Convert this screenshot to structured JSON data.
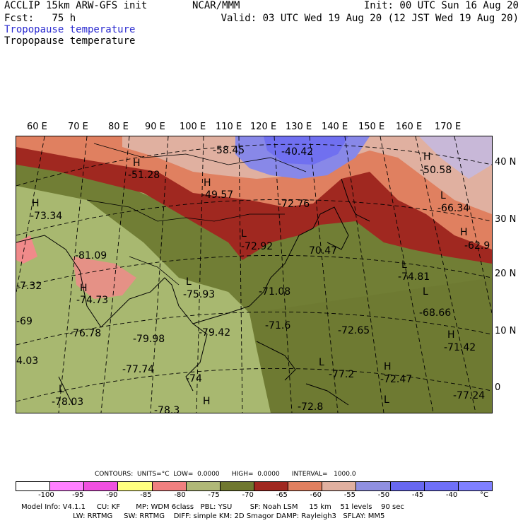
{
  "header": {
    "model": "ACCLIP 15km ARW-GFS init",
    "center": "NCAR/MMM",
    "init": "Init: 00 UTC Sun 16 Aug 20",
    "fcst_label": "Fcst:",
    "fcst_value": "75 h",
    "valid": "Valid: 03 UTC Wed 19 Aug 20 (12 JST Wed 19 Aug 20)",
    "title1": "Tropopause temperature",
    "title2": "Tropopause temperature"
  },
  "longitudes": [
    "60 E",
    "70 E",
    "80 E",
    "90 E",
    "100 E",
    "110 E",
    "120 E",
    "130 E",
    "140 E",
    "150 E",
    "160 E",
    "170 E"
  ],
  "latitudes": [
    "40 N",
    "30 N",
    "20 N",
    "10 N",
    "0"
  ],
  "map_labels": [
    {
      "text": "-58.45"
    },
    {
      "text": "-40.42"
    },
    {
      "text": "H"
    },
    {
      "text": "-51.28"
    },
    {
      "text": "H"
    },
    {
      "text": "-49.57"
    },
    {
      "text": "H"
    },
    {
      "text": "-50.58"
    },
    {
      "text": "L"
    },
    {
      "text": "-66.34"
    },
    {
      "text": "H"
    },
    {
      "text": "-73.34"
    },
    {
      "text": "-72.76"
    },
    {
      "text": "H"
    },
    {
      "text": "-62.9"
    },
    {
      "text": "L"
    },
    {
      "text": "-72.92"
    },
    {
      "text": "70.47"
    },
    {
      "text": "-81.09"
    },
    {
      "text": "L"
    },
    {
      "text": "-74.81"
    },
    {
      "text": "-7.32"
    },
    {
      "text": "H"
    },
    {
      "text": "-74.73"
    },
    {
      "text": "L"
    },
    {
      "text": "-75.93"
    },
    {
      "text": "-71.08"
    },
    {
      "text": "L"
    },
    {
      "text": "-68.66"
    },
    {
      "text": "-69"
    },
    {
      "text": "-76.78"
    },
    {
      "text": "-79.98"
    },
    {
      "text": "-79.42"
    },
    {
      "text": "-71.6"
    },
    {
      "text": "-72.65"
    },
    {
      "text": "H"
    },
    {
      "text": "-71.42"
    },
    {
      "text": "4.03"
    },
    {
      "text": "-77.74"
    },
    {
      "text": "-74"
    },
    {
      "text": "-77.2"
    },
    {
      "text": "-72.47"
    },
    {
      "text": "-77.24"
    },
    {
      "text": "L"
    },
    {
      "text": "-78.03"
    },
    {
      "text": "-72.8"
    },
    {
      "text": "H"
    },
    {
      "text": "L"
    },
    {
      "text": "-78.3"
    },
    {
      "text": "H"
    },
    {
      "text": "L"
    }
  ],
  "contours_text": "CONTOURS:  UNITS=°C  LOW=  0.0000      HIGH=  0.0000      INTERVAL=   1000.0",
  "colorbar": {
    "colors": [
      "#ffffff",
      "#ff80ff",
      "#f050e0",
      "#ffff80",
      "#f08080",
      "#b0b878",
      "#707830",
      "#a02820",
      "#e08060",
      "#e0b0a0",
      "#9090e0",
      "#6868f0",
      "#6f70f8",
      "#7f80ff"
    ],
    "labels": [
      "-100",
      "-95",
      "-90",
      "-85",
      "-80",
      "-75",
      "-70",
      "-65",
      "-60",
      "-55",
      "-50",
      "-45",
      "-40",
      "°C"
    ]
  },
  "footer": {
    "line1": "Model Info: V4.1.1     CU: KF       MP: WDM 6class   PBL: YSU        SF: Noah LSM     15 km    51 levels    90 sec",
    "line2": "                       LW: RRTMG     SW: RRTMG    DIFF: simple KM: 2D Smagor DAMP: Rayleigh3   SFLAY: MM5"
  }
}
